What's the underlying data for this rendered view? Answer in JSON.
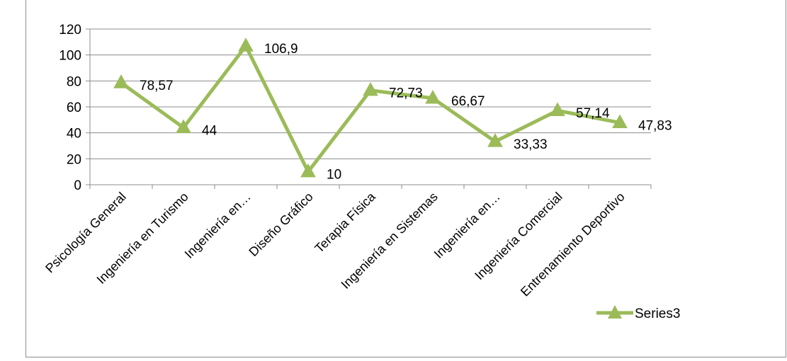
{
  "chart_data": {
    "type": "line",
    "title": "",
    "xlabel": "",
    "ylabel": "",
    "ylim": [
      0,
      120
    ],
    "yticks": [
      0,
      20,
      40,
      60,
      80,
      100,
      120
    ],
    "grid": true,
    "legend_position": "bottom-right",
    "categories": [
      "Psicología General",
      "Ingeniería en Turismo",
      "Ingeniería en…",
      "Diseño Gráfico",
      "Terapia Física",
      "Ingeniería en Sistemas",
      "Ingeniería en…",
      "Ingeniería Comercial",
      "Entrenamiento Deportivo"
    ],
    "series": [
      {
        "name": "Series3",
        "color": "#9bbb59",
        "marker": "triangle",
        "values": [
          78.57,
          44,
          106.9,
          10,
          72.73,
          66.67,
          33.33,
          57.14,
          47.83
        ],
        "labels": [
          "78,57",
          "44",
          "106,9",
          "10",
          "72,73",
          "66,67",
          "33,33",
          "57,14",
          "47,83"
        ]
      }
    ]
  }
}
